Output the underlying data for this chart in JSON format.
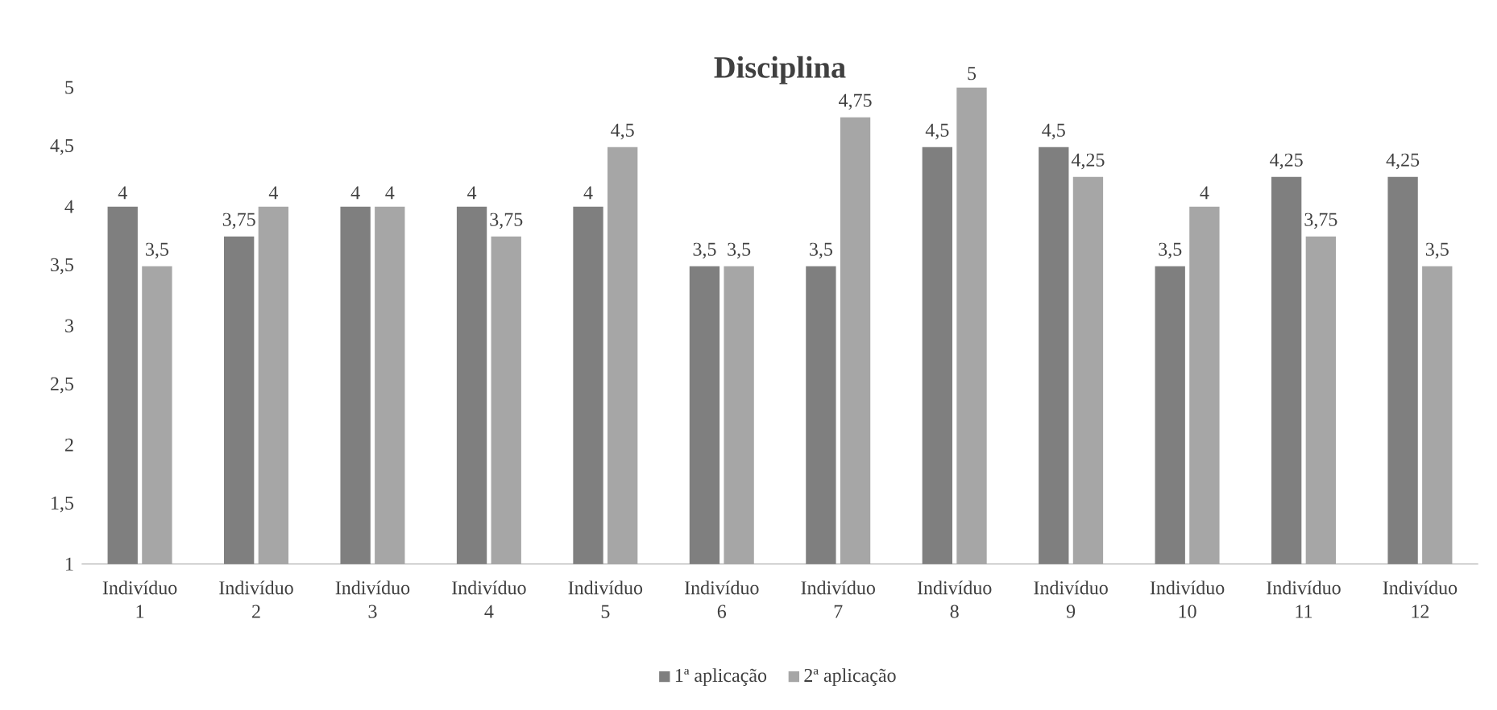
{
  "chart_data": {
    "type": "bar",
    "title": "Disciplina",
    "categories": [
      "Indivíduo 1",
      "Indivíduo 2",
      "Indivíduo 3",
      "Indivíduo 4",
      "Indivíduo 5",
      "Indivíduo 6",
      "Indivíduo 7",
      "Indivíduo 8",
      "Indivíduo 9",
      "Indivíduo 10",
      "Indivíduo 11",
      "Indivíduo 12"
    ],
    "series": [
      {
        "name": "1ª aplicação",
        "color": "#7f7f7f",
        "values": [
          4,
          3.75,
          4,
          4,
          4,
          3.5,
          3.5,
          4.5,
          4.5,
          3.5,
          4.25,
          4.25
        ],
        "value_labels": [
          "4",
          "3,75",
          "4",
          "4",
          "4",
          "3,5",
          "3,5",
          "4,5",
          "4,5",
          "3,5",
          "4,25",
          "4,25"
        ]
      },
      {
        "name": "2ª aplicação",
        "color": "#a6a6a6",
        "values": [
          3.5,
          4,
          4,
          3.75,
          4.5,
          3.5,
          4.75,
          5,
          4.25,
          4,
          3.75,
          3.5
        ],
        "value_labels": [
          "3,5",
          "4",
          "4",
          "3,75",
          "4,5",
          "3,5",
          "4,75",
          "5",
          "4,25",
          "4",
          "3,75",
          "3,5"
        ]
      }
    ],
    "ylim": [
      1,
      5
    ],
    "yticks": [
      {
        "value": 1,
        "label": "1"
      },
      {
        "value": 1.5,
        "label": "1,5"
      },
      {
        "value": 2,
        "label": "2"
      },
      {
        "value": 2.5,
        "label": "2,5"
      },
      {
        "value": 3,
        "label": "3"
      },
      {
        "value": 3.5,
        "label": "3,5"
      },
      {
        "value": 4,
        "label": "4"
      },
      {
        "value": 4.5,
        "label": "4,5"
      },
      {
        "value": 5,
        "label": "5"
      }
    ],
    "legend": "bottom"
  }
}
